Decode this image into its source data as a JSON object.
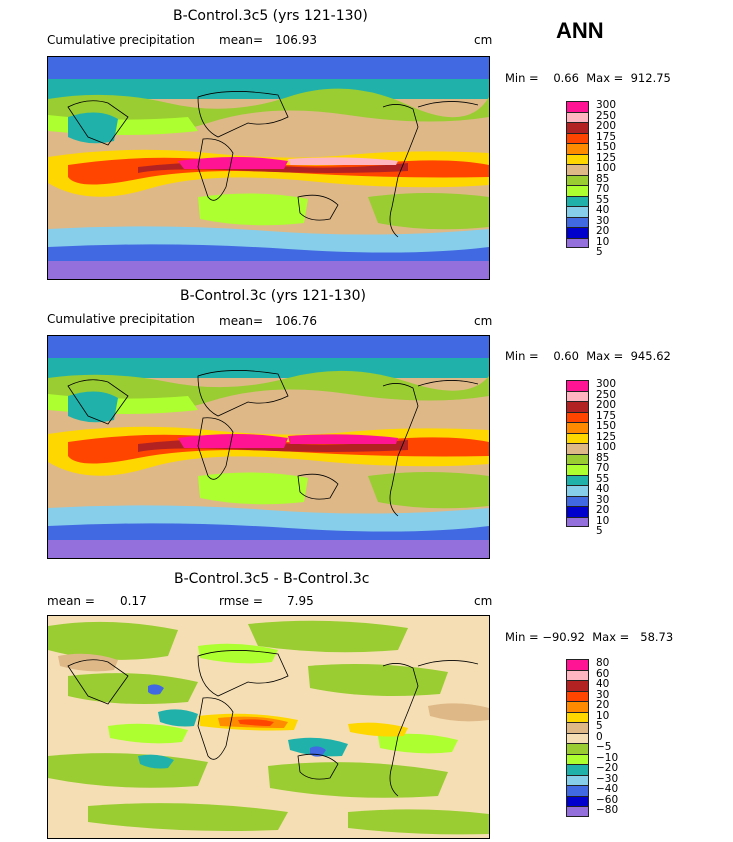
{
  "ann_label": "ANN",
  "panels": [
    {
      "title": "B-Control.3c5 (yrs 121-130)",
      "left_label": "Cumulative precipitation",
      "mean_label": "mean=",
      "mean_value": "106.93",
      "units": "cm",
      "minmax": "Min =    0.66  Max =  912.75",
      "legend": {
        "colors": [
          "#ff1493",
          "#ffb6c1",
          "#b22222",
          "#ff4500",
          "#ff8c00",
          "#ffd700",
          "#deb887",
          "#9acd32",
          "#adff2f",
          "#20b2aa",
          "#87ceeb",
          "#4169e1",
          "#0000cd",
          "#9370db"
        ],
        "labels": [
          "300",
          "250",
          "200",
          "175",
          "150",
          "125",
          "100",
          "85",
          "70",
          "55",
          "40",
          "30",
          "20",
          "10",
          "5"
        ]
      }
    },
    {
      "title": "B-Control.3c (yrs 121-130)",
      "left_label": "Cumulative precipitation",
      "mean_label": "mean=",
      "mean_value": "106.76",
      "units": "cm",
      "minmax": "Min =    0.60  Max =  945.62",
      "legend": {
        "colors": [
          "#ff1493",
          "#ffb6c1",
          "#b22222",
          "#ff4500",
          "#ff8c00",
          "#ffd700",
          "#deb887",
          "#9acd32",
          "#adff2f",
          "#20b2aa",
          "#87ceeb",
          "#4169e1",
          "#0000cd",
          "#9370db"
        ],
        "labels": [
          "300",
          "250",
          "200",
          "175",
          "150",
          "125",
          "100",
          "85",
          "70",
          "55",
          "40",
          "30",
          "20",
          "10",
          "5"
        ]
      }
    },
    {
      "title": "B-Control.3c5 - B-Control.3c",
      "left_label": "mean =",
      "mean_label": "rmse =",
      "left_value": "0.17",
      "mean_value": "7.95",
      "units": "cm",
      "minmax": "Min = −90.92  Max =   58.73",
      "legend": {
        "colors": [
          "#ff1493",
          "#ffb6c1",
          "#b22222",
          "#ff4500",
          "#ff8c00",
          "#ffd700",
          "#deb887",
          "#f5deb3",
          "#9acd32",
          "#adff2f",
          "#20b2aa",
          "#87ceeb",
          "#4169e1",
          "#0000cd",
          "#9370db"
        ],
        "labels": [
          "80",
          "60",
          "40",
          "30",
          "20",
          "10",
          "5",
          "0",
          "−5",
          "−10",
          "−20",
          "−30",
          "−40",
          "−60",
          "−80"
        ]
      }
    }
  ]
}
